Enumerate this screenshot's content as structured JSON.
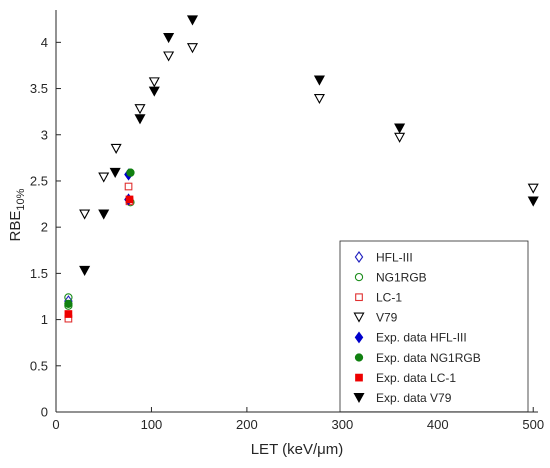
{
  "chart_data": {
    "type": "scatter",
    "title": "",
    "xlabel": "LET (keV/μm)",
    "ylabel": "RBE",
    "ylabel_sub": "10%",
    "xlim": [
      0,
      505
    ],
    "ylim": [
      0,
      4.35
    ],
    "xticks": [
      "0",
      "100",
      "200",
      "300",
      "400",
      "500"
    ],
    "yticks": [
      "0",
      "0.5",
      "1",
      "1.5",
      "2",
      "2.5",
      "3",
      "3.5",
      "4"
    ],
    "grid": false,
    "legend_position": "lower-right",
    "series": [
      {
        "name": "HFL-III",
        "marker": "diamond-open",
        "color": "#1f1fbf",
        "points": [
          [
            13,
            1.2
          ],
          [
            76,
            2.3
          ],
          [
            76,
            2.57
          ]
        ]
      },
      {
        "name": "NG1RGB",
        "marker": "circle-open",
        "color": "#1a8c1a",
        "points": [
          [
            13,
            1.24
          ],
          [
            13,
            1.15
          ],
          [
            78,
            2.27
          ],
          [
            78,
            2.59
          ]
        ]
      },
      {
        "name": "LC-1",
        "marker": "square-open",
        "color": "#e03030",
        "points": [
          [
            13,
            1.01
          ],
          [
            76,
            2.44
          ],
          [
            77,
            2.28
          ]
        ]
      },
      {
        "name": "V79",
        "marker": "triangle-down-open",
        "color": "#000000",
        "points": [
          [
            30,
            2.14
          ],
          [
            50,
            2.54
          ],
          [
            63,
            2.85
          ],
          [
            88,
            3.28
          ],
          [
            103,
            3.57
          ],
          [
            118,
            3.85
          ],
          [
            143,
            3.94
          ],
          [
            276,
            3.39
          ],
          [
            360,
            2.97
          ],
          [
            500,
            2.42
          ]
        ]
      },
      {
        "name": "Exp. data HFL-III",
        "marker": "diamond-filled",
        "color": "#0000cc",
        "points": [
          [
            76,
            2.3
          ],
          [
            76,
            2.57
          ]
        ]
      },
      {
        "name": "Exp. data NG1RGB",
        "marker": "circle-filled",
        "color": "#118011",
        "points": [
          [
            13,
            1.17
          ],
          [
            78,
            2.59
          ]
        ]
      },
      {
        "name": "Exp. data LC-1",
        "marker": "square-filled",
        "color": "#ee0000",
        "points": [
          [
            13,
            1.06
          ],
          [
            77,
            2.3
          ]
        ]
      },
      {
        "name": "Exp. data V79",
        "marker": "triangle-down-filled",
        "color": "#000000",
        "points": [
          [
            30,
            1.53
          ],
          [
            50,
            2.14
          ],
          [
            62,
            2.59
          ],
          [
            88,
            3.17
          ],
          [
            103,
            3.47
          ],
          [
            118,
            4.05
          ],
          [
            143,
            4.24
          ],
          [
            276,
            3.59
          ],
          [
            360,
            3.07
          ],
          [
            500,
            2.28
          ]
        ]
      }
    ]
  }
}
